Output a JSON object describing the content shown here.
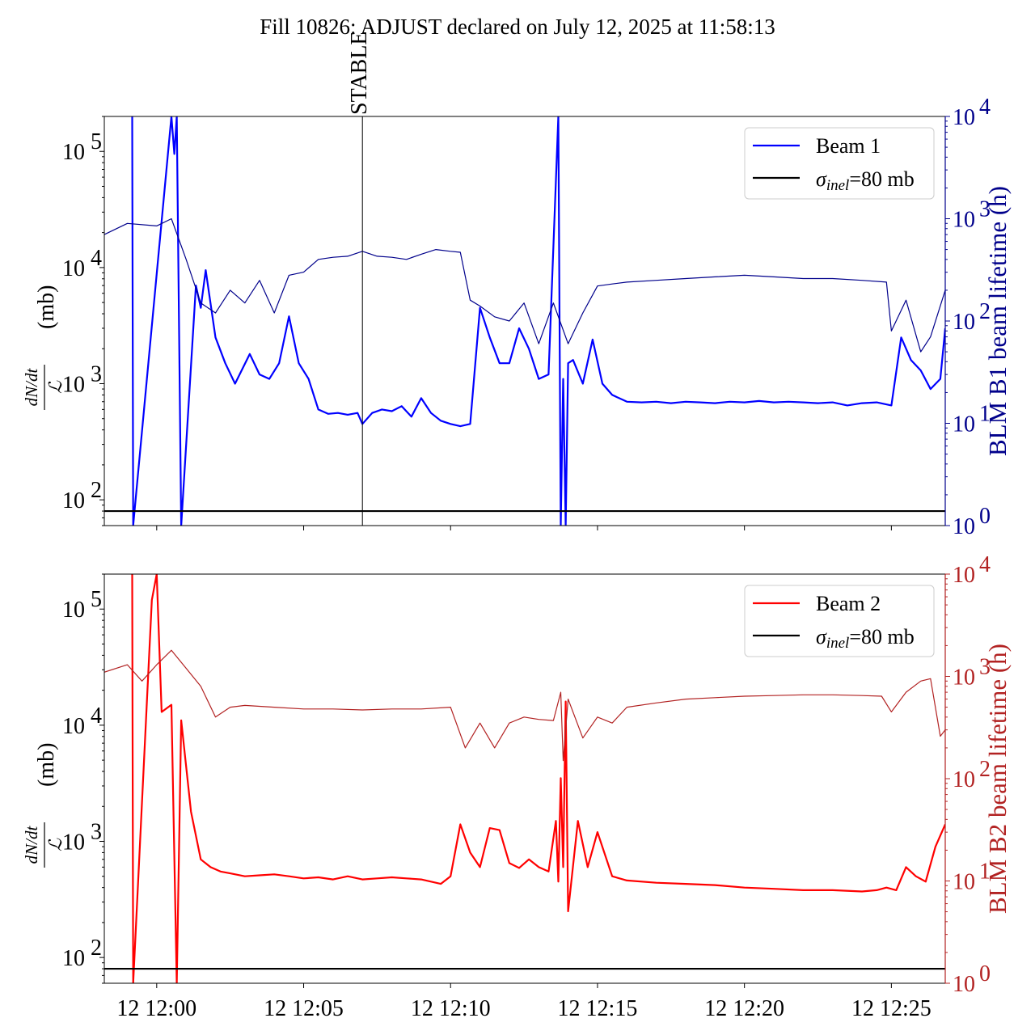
{
  "title": "Fill 10826: ADJUST declared on July 12, 2025 at 11:58:13",
  "marker_label": "STABLE",
  "colors": {
    "beam1": "#0000ff",
    "beam1_dark": "#00008b",
    "beam2": "#ff0000",
    "beam2_dark": "#b22222",
    "sigma": "#000000"
  },
  "chart_data": [
    {
      "type": "line",
      "panel": "top",
      "xlabel": "",
      "ylabel_left": "dN/dt / L (mb)",
      "ylabel_right": "BLM B1 beam lifetime (h)",
      "yscale_left": "log",
      "ylim_left": [
        60,
        200000
      ],
      "yscale_right": "log",
      "ylim_right": [
        1,
        10000
      ],
      "xlim": [
        "11:58:13",
        "12:26:50"
      ],
      "x_ticks": [
        "12 12:00",
        "12 12:05",
        "12 12:10",
        "12 12:15",
        "12 12:20",
        "12 12:25"
      ],
      "y_ticks_left": [
        "10^2",
        "10^3",
        "10^4",
        "10^5"
      ],
      "y_ticks_right": [
        "10^0",
        "10^1",
        "10^2",
        "10^3",
        "10^4"
      ],
      "vline": {
        "x": "12:07:00",
        "label": "STABLE"
      },
      "legend": {
        "placement": "top-right",
        "entries": [
          "Beam 1",
          "σinel=80 mb"
        ]
      },
      "series": [
        {
          "name": "Beam 1",
          "axis": "left",
          "x": [
            "11:59:10",
            "11:59:12",
            "12:00:30",
            "12:00:36",
            "12:00:41",
            "12:00:50",
            "12:01:20",
            "12:01:30",
            "12:01:40",
            "12:02:00",
            "12:02:20",
            "12:02:40",
            "12:03:10",
            "12:03:30",
            "12:03:50",
            "12:04:10",
            "12:04:30",
            "12:04:50",
            "12:05:10",
            "12:05:30",
            "12:05:50",
            "12:06:10",
            "12:06:30",
            "12:06:50",
            "12:07:00",
            "12:07:20",
            "12:07:40",
            "12:08:00",
            "12:08:20",
            "12:08:40",
            "12:09:00",
            "12:09:20",
            "12:09:40",
            "12:10:00",
            "12:10:20",
            "12:10:40",
            "12:11:00",
            "12:11:20",
            "12:11:40",
            "12:12:00",
            "12:12:20",
            "12:12:40",
            "12:13:00",
            "12:13:20",
            "12:13:40",
            "12:13:45",
            "12:13:50",
            "12:13:55",
            "12:14:00",
            "12:14:10",
            "12:14:30",
            "12:14:50",
            "12:15:10",
            "12:15:30",
            "12:16:00",
            "12:16:30",
            "12:17:00",
            "12:17:30",
            "12:18:00",
            "12:18:30",
            "12:19:00",
            "12:19:30",
            "12:20:00",
            "12:20:30",
            "12:21:00",
            "12:21:30",
            "12:22:00",
            "12:22:30",
            "12:23:00",
            "12:23:30",
            "12:24:00",
            "12:24:30",
            "12:25:00",
            "12:25:20",
            "12:25:40",
            "12:26:00",
            "12:26:20",
            "12:26:40",
            "12:26:50"
          ],
          "values": [
            200000,
            60,
            200000,
            95000,
            200000,
            60,
            7000,
            4500,
            9500,
            2500,
            1500,
            1000,
            1800,
            1200,
            1100,
            1500,
            3800,
            1500,
            1100,
            600,
            550,
            560,
            540,
            560,
            450,
            560,
            600,
            580,
            640,
            520,
            750,
            560,
            480,
            450,
            430,
            450,
            4500,
            2500,
            1500,
            1500,
            3000,
            2000,
            1100,
            1200,
            200000,
            60,
            1100,
            60,
            1500,
            1600,
            1000,
            2400,
            1000,
            800,
            700,
            690,
            700,
            680,
            700,
            690,
            680,
            700,
            690,
            710,
            690,
            700,
            690,
            680,
            690,
            650,
            680,
            690,
            650,
            2500,
            1600,
            1300,
            900,
            1100,
            3000
          ],
          "values_note_omitted": false
        },
        {
          "name": "BLM B1 beam lifetime",
          "axis": "right",
          "color_key": "beam1_dark",
          "x": [
            "11:58:13",
            "11:59:00",
            "12:00:00",
            "12:00:30",
            "12:01:00",
            "12:01:30",
            "12:02:00",
            "12:02:30",
            "12:03:00",
            "12:03:30",
            "12:04:00",
            "12:04:30",
            "12:05:00",
            "12:05:30",
            "12:06:00",
            "12:06:30",
            "12:07:00",
            "12:07:30",
            "12:08:00",
            "12:08:30",
            "12:09:00",
            "12:09:30",
            "12:10:00",
            "12:10:20",
            "12:10:40",
            "12:11:00",
            "12:11:30",
            "12:12:00",
            "12:12:30",
            "12:13:00",
            "12:13:30",
            "12:14:00",
            "12:14:30",
            "12:15:00",
            "12:15:30",
            "12:16:00",
            "12:17:00",
            "12:18:00",
            "12:19:00",
            "12:20:00",
            "12:21:00",
            "12:22:00",
            "12:23:00",
            "12:24:00",
            "12:24:50",
            "12:25:00",
            "12:25:30",
            "12:26:00",
            "12:26:20",
            "12:26:50"
          ],
          "values": [
            700,
            900,
            850,
            1000,
            400,
            150,
            120,
            200,
            150,
            250,
            120,
            280,
            300,
            400,
            420,
            430,
            480,
            430,
            420,
            400,
            450,
            500,
            480,
            470,
            160,
            140,
            110,
            100,
            150,
            60,
            150,
            60,
            120,
            220,
            230,
            240,
            250,
            260,
            270,
            280,
            270,
            260,
            260,
            250,
            240,
            80,
            160,
            50,
            70,
            200
          ]
        }
      ]
    },
    {
      "type": "line",
      "panel": "bottom",
      "xlabel": "",
      "ylabel_left": "dN/dt / L (mb)",
      "ylabel_right": "BLM B2 beam lifetime (h)",
      "yscale_left": "log",
      "ylim_left": [
        60,
        200000
      ],
      "yscale_right": "log",
      "ylim_right": [
        1,
        10000
      ],
      "xlim": [
        "11:58:13",
        "12:26:50"
      ],
      "x_ticks": [
        "12 12:00",
        "12 12:05",
        "12 12:10",
        "12 12:15",
        "12 12:20",
        "12 12:25"
      ],
      "y_ticks_left": [
        "10^2",
        "10^3",
        "10^4",
        "10^5"
      ],
      "y_ticks_right": [
        "10^0",
        "10^1",
        "10^2",
        "10^3",
        "10^4"
      ],
      "legend": {
        "placement": "top-right",
        "entries": [
          "Beam 2",
          "σinel=80 mb"
        ]
      },
      "series": [
        {
          "name": "Beam 2",
          "axis": "left",
          "x": [
            "11:59:10",
            "11:59:12",
            "11:59:50",
            "12:00:00",
            "12:00:10",
            "12:00:30",
            "12:00:41",
            "12:00:50",
            "12:01:10",
            "12:01:30",
            "12:01:50",
            "12:02:10",
            "12:02:30",
            "12:03:00",
            "12:03:30",
            "12:04:00",
            "12:04:30",
            "12:05:00",
            "12:05:30",
            "12:06:00",
            "12:06:30",
            "12:07:00",
            "12:07:30",
            "12:08:00",
            "12:08:30",
            "12:09:00",
            "12:09:20",
            "12:09:40",
            "12:10:00",
            "12:10:20",
            "12:10:40",
            "12:11:00",
            "12:11:20",
            "12:11:40",
            "12:12:00",
            "12:12:20",
            "12:12:40",
            "12:13:00",
            "12:13:20",
            "12:13:35",
            "12:13:40",
            "12:13:45",
            "12:13:50",
            "12:13:55",
            "12:14:00",
            "12:14:20",
            "12:14:40",
            "12:15:00",
            "12:15:30",
            "12:16:00",
            "12:17:00",
            "12:18:00",
            "12:19:00",
            "12:20:00",
            "12:21:00",
            "12:22:00",
            "12:23:00",
            "12:24:00",
            "12:24:30",
            "12:24:50",
            "12:25:10",
            "12:25:30",
            "12:25:50",
            "12:26:10",
            "12:26:30",
            "12:26:50"
          ],
          "values": [
            200000,
            60,
            120000,
            200000,
            13000,
            15000,
            60,
            11000,
            1800,
            700,
            600,
            550,
            530,
            500,
            510,
            520,
            500,
            480,
            490,
            470,
            500,
            470,
            480,
            490,
            480,
            470,
            450,
            430,
            500,
            1400,
            800,
            600,
            1300,
            1250,
            650,
            590,
            700,
            600,
            550,
            1500,
            450,
            3500,
            600,
            16000,
            250,
            1500,
            600,
            1200,
            500,
            460,
            440,
            430,
            420,
            400,
            390,
            380,
            380,
            370,
            380,
            400,
            380,
            600,
            500,
            450,
            900,
            1400
          ]
        },
        {
          "name": "BLM B2 beam lifetime",
          "axis": "right",
          "color_key": "beam2_dark",
          "x": [
            "11:58:13",
            "11:59:00",
            "11:59:30",
            "12:00:00",
            "12:00:30",
            "12:01:00",
            "12:01:30",
            "12:02:00",
            "12:02:30",
            "12:03:00",
            "12:04:00",
            "12:05:00",
            "12:06:00",
            "12:07:00",
            "12:08:00",
            "12:09:00",
            "12:10:00",
            "12:10:30",
            "12:11:00",
            "12:11:30",
            "12:12:00",
            "12:12:30",
            "12:13:00",
            "12:13:30",
            "12:13:45",
            "12:13:50",
            "12:14:00",
            "12:14:30",
            "12:15:00",
            "12:15:30",
            "12:16:00",
            "12:17:00",
            "12:18:00",
            "12:19:00",
            "12:20:00",
            "12:21:00",
            "12:22:00",
            "12:23:00",
            "12:24:00",
            "12:24:40",
            "12:25:00",
            "12:25:30",
            "12:26:00",
            "12:26:20",
            "12:26:40",
            "12:26:50"
          ],
          "values": [
            1100,
            1300,
            900,
            1300,
            1800,
            1200,
            800,
            400,
            500,
            520,
            500,
            480,
            480,
            470,
            480,
            480,
            500,
            200,
            350,
            200,
            350,
            400,
            380,
            370,
            700,
            150,
            600,
            250,
            400,
            350,
            500,
            550,
            600,
            620,
            640,
            650,
            660,
            660,
            650,
            640,
            450,
            700,
            900,
            950,
            260,
            300
          ]
        }
      ]
    }
  ]
}
